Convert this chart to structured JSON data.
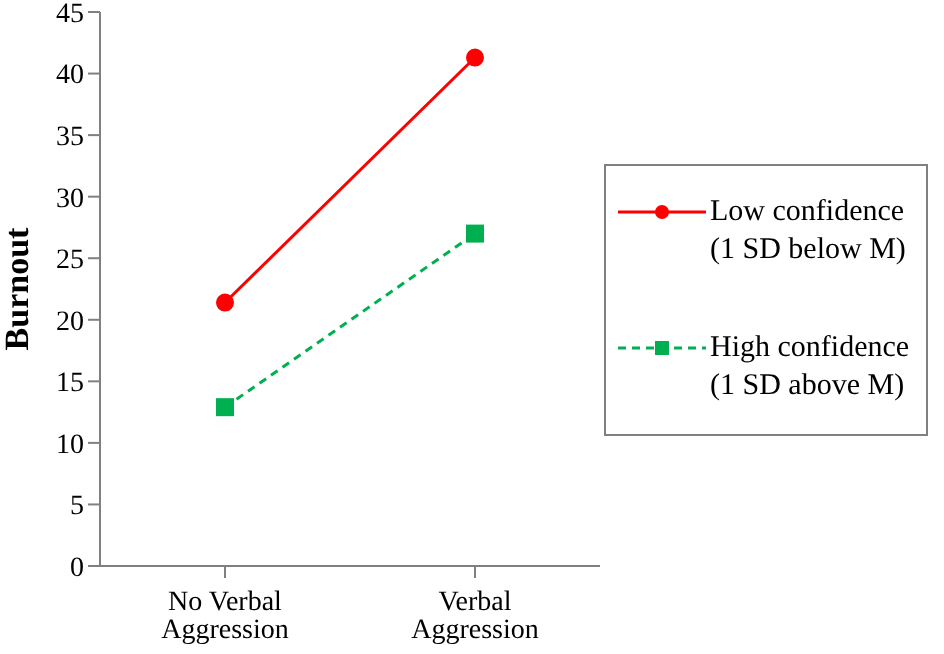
{
  "chart_data": {
    "type": "line",
    "ylabel": "Burnout",
    "categories": [
      "No Verbal Aggression",
      "Verbal Aggression"
    ],
    "series": [
      {
        "name": "Low confidence (1 SD below M)",
        "color": "#ff0000",
        "values": [
          21.4,
          41.3
        ],
        "marker": "circle",
        "line_style": "solid"
      },
      {
        "name": "High confidence (1 SD above M)",
        "color": "#00b050",
        "values": [
          12.9,
          27.0
        ],
        "marker": "square",
        "line_style": "dashed"
      }
    ],
    "ylim": [
      0,
      45
    ],
    "yticks": [
      0,
      5,
      10,
      15,
      20,
      25,
      30,
      35,
      40,
      45
    ],
    "grid": false,
    "legend": "right"
  }
}
